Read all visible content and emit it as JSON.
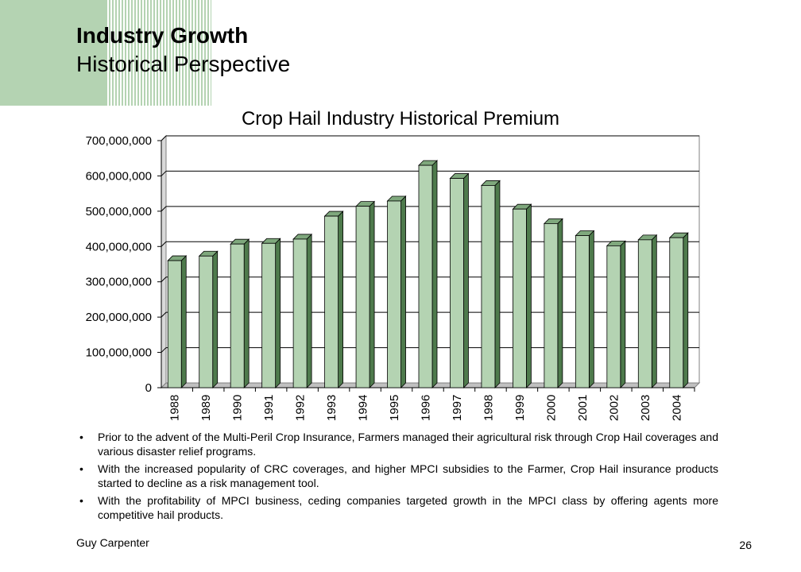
{
  "header": {
    "title": "Industry Growth",
    "subtitle": "Historical Perspective"
  },
  "chart_data": {
    "type": "bar",
    "title": "Crop Hail Industry Historical Premium",
    "xlabel": "",
    "ylabel": "",
    "categories": [
      "1988",
      "1989",
      "1990",
      "1991",
      "1992",
      "1993",
      "1994",
      "1995",
      "1996",
      "1997",
      "1998",
      "1999",
      "2000",
      "2001",
      "2002",
      "2003",
      "2004"
    ],
    "values": [
      360000000,
      373000000,
      407000000,
      409000000,
      421000000,
      486000000,
      514000000,
      529000000,
      630000000,
      593000000,
      573000000,
      506000000,
      465000000,
      431000000,
      402000000,
      419000000,
      425000000
    ],
    "ylim": [
      0,
      700000000
    ],
    "yticks": [
      0,
      100000000,
      200000000,
      300000000,
      400000000,
      500000000,
      600000000,
      700000000
    ],
    "ytick_labels": [
      "0",
      "100,000,000",
      "200,000,000",
      "300,000,000",
      "400,000,000",
      "500,000,000",
      "600,000,000",
      "700,000,000"
    ],
    "grid": true,
    "legend": "none",
    "colors": {
      "bar_front": "#b4d3b2",
      "bar_side": "#4e7a4c",
      "bar_top": "#7fa87d",
      "grid": "#000000"
    }
  },
  "bullets": [
    "Prior to the advent of the Multi-Peril Crop Insurance, Farmers managed their agricultural risk through Crop Hail coverages and various disaster relief programs.",
    "With the increased popularity of CRC coverages, and higher MPCI subsidies to the Farmer, Crop Hail insurance products started to decline as a risk management tool.",
    "With the profitability of MPCI business, ceding companies targeted growth in the MPCI class by offering agents more competitive hail products."
  ],
  "footer": {
    "company": "Guy Carpenter",
    "page_number": "26"
  }
}
